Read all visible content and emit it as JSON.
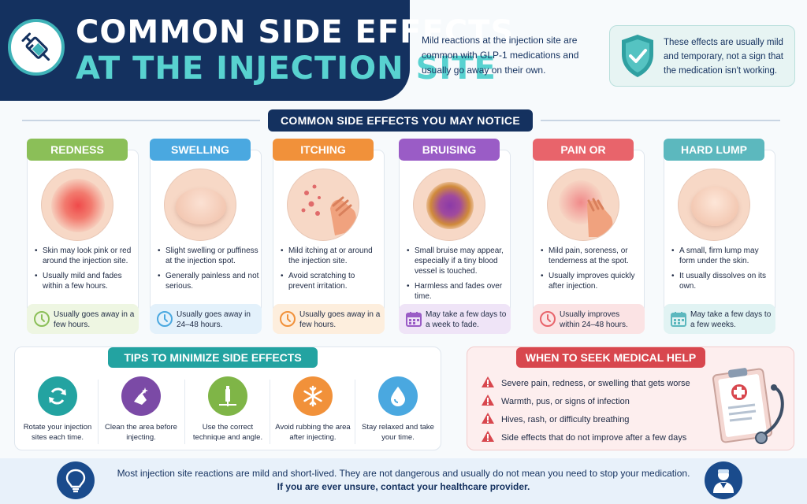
{
  "header": {
    "title_line1": "COMMON SIDE EFFECTS",
    "title_line2": "AT THE INJECTION SITE",
    "icon": "syringe-icon",
    "intro": "Mild reactions at the injection site are common with GLP-1 medications and usually go away on their own.",
    "reassurance": "These effects are usually mild and temporary, not a sign that the medication isn't working.",
    "reassurance_icon": "shield-check-icon"
  },
  "section_title": "COMMON SIDE EFFECTS YOU MAY NOTICE",
  "effects": [
    {
      "title": "REDNESS",
      "color": "#8bbf58",
      "foot_bg": "#eef6e2",
      "foot_icon": "clock-icon",
      "bullets": [
        "Skin may look pink or red around the injection site.",
        "Usually mild and fades within a few hours."
      ],
      "duration": "Usually goes away in a few hours."
    },
    {
      "title": "SWELLING",
      "color": "#4aa8e0",
      "foot_bg": "#e3f1fb",
      "foot_icon": "clock-icon",
      "bullets": [
        "Slight swelling or puffiness at the injection spot.",
        "Generally painless and not serious."
      ],
      "duration": "Usually goes away in 24–48 hours."
    },
    {
      "title": "ITCHING",
      "color": "#f1913a",
      "foot_bg": "#fdeedd",
      "foot_icon": "clock-icon",
      "bullets": [
        "Mild itching at or around the injection site.",
        "Avoid scratching to prevent irritation."
      ],
      "duration": "Usually goes away in a few hours."
    },
    {
      "title": "BRUISING",
      "color": "#9a5cc6",
      "foot_bg": "#efe4f7",
      "foot_icon": "calendar-icon",
      "bullets": [
        "Small bruise may appear, especially if a tiny blood vessel is touched.",
        "Harmless and fades over time."
      ],
      "duration": "May take a few days to a week to fade."
    },
    {
      "title": "PAIN OR TENDERNESS",
      "color": "#e8646b",
      "foot_bg": "#fbe3e4",
      "foot_icon": "clock-icon",
      "bullets": [
        "Mild pain, soreness, or tenderness at the spot.",
        "Usually improves quickly after injection."
      ],
      "duration": "Usually improves within 24–48 hours."
    },
    {
      "title": "HARD LUMP",
      "color": "#5cb8be",
      "foot_bg": "#e1f3f3",
      "foot_icon": "calendar-icon",
      "bullets": [
        "A small, firm lump may form under the skin.",
        "It usually dissolves on its own."
      ],
      "duration": "May take a few days to a few weeks."
    }
  ],
  "tips": {
    "title": "TIPS TO MINIMIZE SIDE EFFECTS",
    "items": [
      {
        "text": "Rotate your injection sites each time.",
        "color": "#23a3a1",
        "icon": "rotate-icon"
      },
      {
        "text": "Clean the area before injecting.",
        "color": "#7b4aa6",
        "icon": "hand-wash-icon"
      },
      {
        "text": "Use the correct technique and angle.",
        "color": "#7fb547",
        "icon": "injection-pen-icon"
      },
      {
        "text": "Avoid rubbing the area after injecting.",
        "color": "#f1913a",
        "icon": "snowflake-icon"
      },
      {
        "text": "Stay relaxed and take your time.",
        "color": "#4aa8e0",
        "icon": "water-drop-icon"
      }
    ]
  },
  "help": {
    "title": "WHEN TO SEEK MEDICAL HELP",
    "warning_icon": "warning-icon",
    "illustration": "clipboard-stethoscope-icon",
    "items": [
      "Severe pain, redness, or swelling that gets worse",
      "Warmth, pus, or signs of infection",
      "Hives, rash, or difficulty breathing",
      "Side effects that do not improve after a few days"
    ]
  },
  "banner": {
    "line1": "Most injection site reactions are mild and short-lived. They are not dangerous and usually do not mean you need to stop your medication.",
    "line2": "If you are ever unsure, contact your healthcare provider.",
    "left_icon": "lightbulb-icon",
    "right_icon": "doctor-icon"
  }
}
